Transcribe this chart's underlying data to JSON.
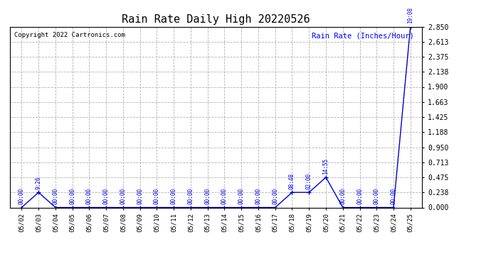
{
  "title": "Rain Rate Daily High 20220526",
  "copyright": "Copyright 2022 Cartronics.com",
  "ylabel": "Rain Rate (Inches/Hour)",
  "background_color": "#ffffff",
  "plot_background": "#ffffff",
  "line_color": "#0000cc",
  "marker_color": "#0000cc",
  "label_color": "#0000ff",
  "grid_color": "#aaaaaa",
  "dates": [
    "05/02",
    "05/03",
    "05/04",
    "05/05",
    "05/06",
    "05/07",
    "05/08",
    "05/09",
    "05/10",
    "05/11",
    "05/12",
    "05/13",
    "05/14",
    "05/15",
    "05/16",
    "05/17",
    "05/18",
    "05/19",
    "05/20",
    "05/21",
    "05/22",
    "05/23",
    "05/24",
    "05/25"
  ],
  "values": [
    0.0,
    0.238,
    0.0,
    0.0,
    0.0,
    0.0,
    0.0,
    0.0,
    0.0,
    0.0,
    0.0,
    0.0,
    0.0,
    0.0,
    0.0,
    0.0,
    0.238,
    0.238,
    0.475,
    0.0,
    0.0,
    0.0,
    0.0,
    2.85
  ],
  "point_labels": [
    "00:00",
    "9:26",
    "00:00",
    "00:00",
    "00:00",
    "00:00",
    "00:00",
    "00:00",
    "00:00",
    "00:00",
    "00:00",
    "00:00",
    "00:00",
    "00:00",
    "00:00",
    "00:00",
    "08:48",
    "02:00",
    "14:55",
    "00:00",
    "00:00",
    "00:00",
    "00:00",
    "19:08"
  ],
  "yticks": [
    0.0,
    0.238,
    0.475,
    0.713,
    0.95,
    1.188,
    1.425,
    1.663,
    1.9,
    2.138,
    2.375,
    2.613,
    2.85
  ],
  "ylim": [
    0.0,
    2.85
  ],
  "figsize": [
    6.9,
    3.75
  ],
  "dpi": 100
}
